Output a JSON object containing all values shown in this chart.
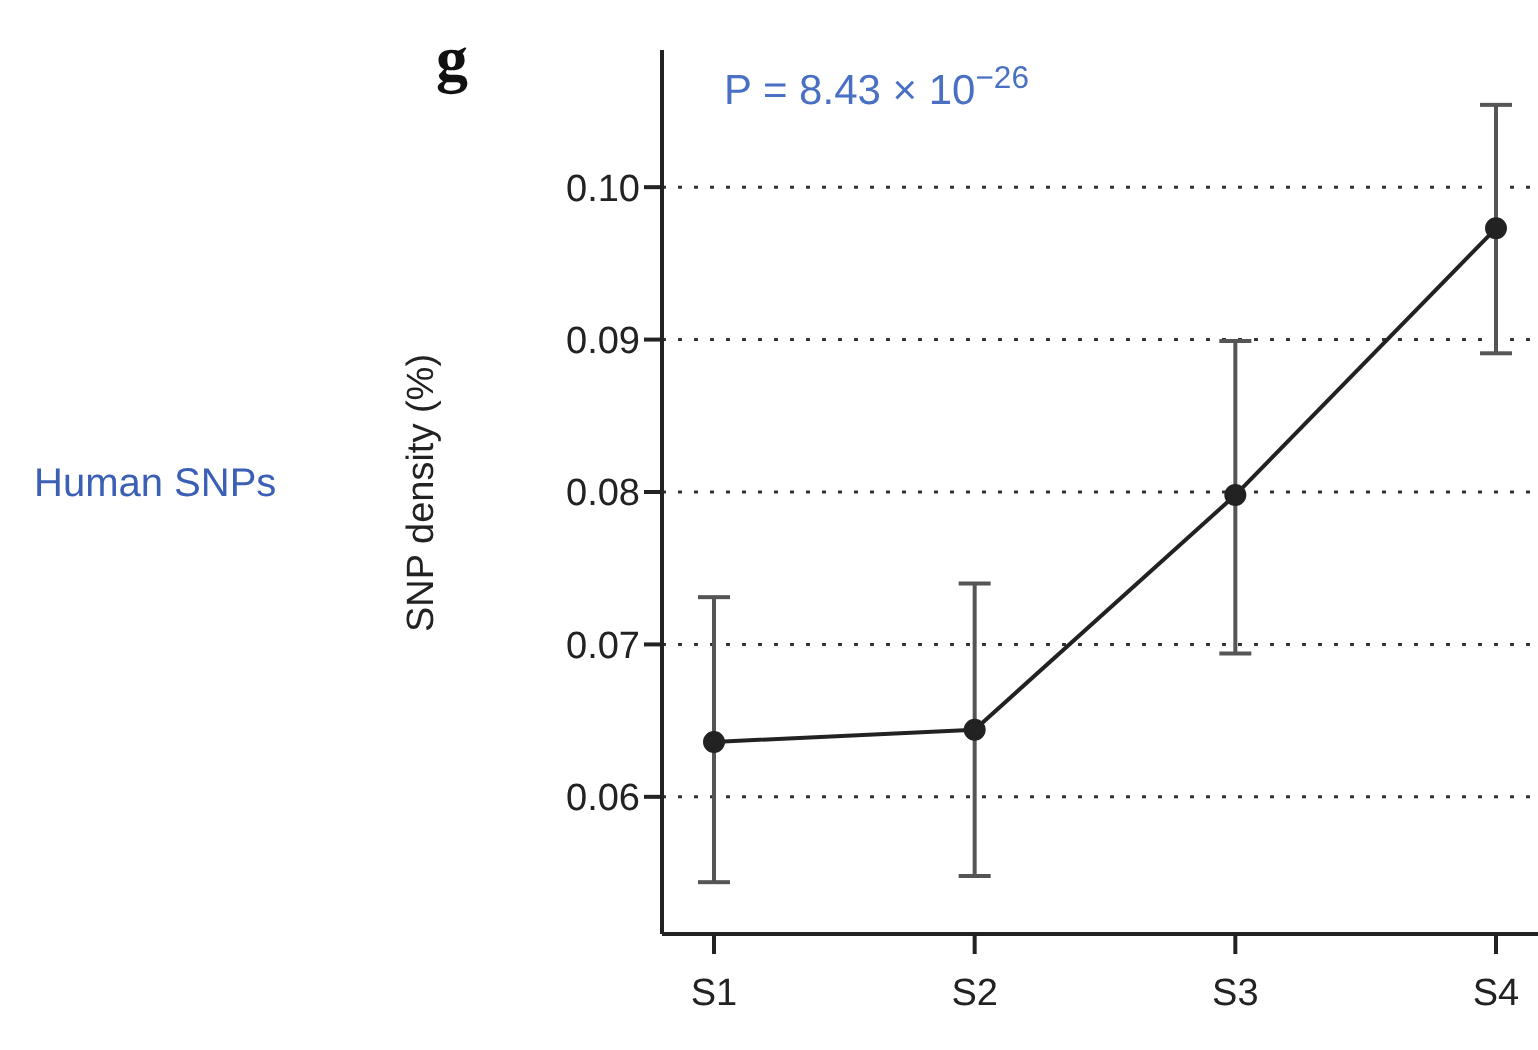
{
  "chart_data": {
    "type": "line",
    "title": "g",
    "ylabel": "SNP density (%)",
    "annotations": [
      "P = 8.43 × 10$^{−26}$",
      "Human SNPs"
    ],
    "categories": [
      "S1",
      "S2",
      "S3",
      "S4"
    ],
    "series": [
      {
        "color": "#222222",
        "values": [
          0.0636,
          0.0644,
          0.0798,
          0.0973
        ],
        "errors": [
          [
            0.0544,
            0.0731
          ],
          [
            0.0548,
            0.074
          ],
          [
            0.0694,
            0.0899
          ],
          [
            0.0891,
            0.1054
          ]
        ]
      }
    ],
    "ylim": [
      0.051,
      0.109
    ],
    "yticks": [
      {
        "value": 0.06,
        "label": "0.06"
      },
      {
        "value": 0.07,
        "label": "0.07"
      },
      {
        "value": 0.08,
        "label": "0.08"
      },
      {
        "value": 0.09,
        "label": "0.09"
      },
      {
        "value": 0.1,
        "label": "0.10"
      }
    ],
    "grid": "y",
    "marker": "circle",
    "line_style": "solid",
    "legend": false
  }
}
